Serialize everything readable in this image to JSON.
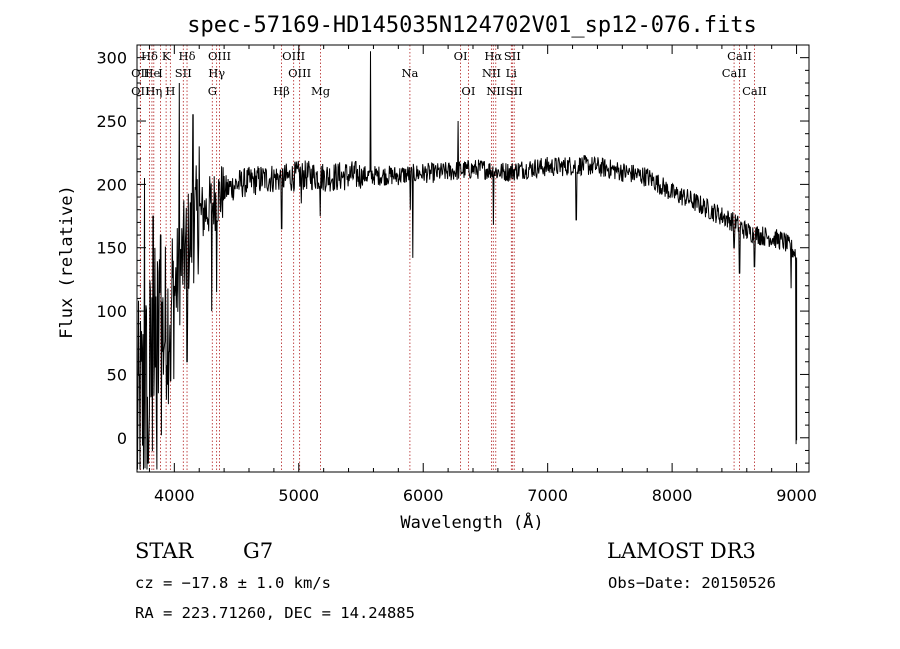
{
  "chart_data": {
    "type": "line",
    "title": "spec-57169-HD145035N124702V01_sp12-076.fits",
    "xlabel": "Wavelength (Å)",
    "ylabel": "Flux (relative)",
    "xlim": [
      3700,
      9100
    ],
    "ylim": [
      -27,
      310
    ],
    "x_ticks": [
      4000,
      5000,
      6000,
      7000,
      8000,
      9000
    ],
    "y_ticks": [
      0,
      50,
      100,
      150,
      200,
      250,
      300
    ],
    "grid": false,
    "series_color": "#000000",
    "line_marker_color": "#b22222",
    "continuum": {
      "x": [
        3700,
        3760,
        3820,
        3880,
        3950,
        4000,
        4050,
        4100,
        4150,
        4200,
        4260,
        4300,
        4350,
        4400,
        4500,
        4600,
        4700,
        4800,
        4900,
        5000,
        5100,
        5200,
        5300,
        5400,
        5500,
        5600,
        5700,
        5800,
        5900,
        6000,
        6100,
        6200,
        6300,
        6400,
        6500,
        6600,
        6700,
        6800,
        6900,
        7000,
        7100,
        7200,
        7300,
        7400,
        7500,
        7600,
        7700,
        7800,
        7900,
        8000,
        8100,
        8200,
        8300,
        8400,
        8500,
        8600,
        8700,
        8800,
        8900,
        8950,
        9000
      ],
      "y": [
        10,
        30,
        50,
        75,
        95,
        115,
        135,
        150,
        165,
        175,
        180,
        185,
        190,
        195,
        200,
        202,
        204,
        205,
        205,
        207,
        207,
        206,
        206,
        207,
        207,
        207,
        207,
        207,
        208,
        209,
        209,
        210,
        211,
        212,
        212,
        210,
        210,
        212,
        213,
        214,
        214,
        215,
        215,
        214,
        212,
        210,
        208,
        206,
        200,
        193,
        190,
        185,
        180,
        175,
        170,
        163,
        160,
        158,
        155,
        150,
        145
      ]
    },
    "features": [
      {
        "x": 3760,
        "y": 205
      },
      {
        "x": 3790,
        "y": -20
      },
      {
        "x": 3830,
        "y": 175
      },
      {
        "x": 3860,
        "y": -25
      },
      {
        "x": 3890,
        "y": 160
      },
      {
        "x": 3935,
        "y": 30
      },
      {
        "x": 3970,
        "y": 45
      },
      {
        "x": 4040,
        "y": 280
      },
      {
        "x": 4102,
        "y": 60
      },
      {
        "x": 4150,
        "y": 255
      },
      {
        "x": 4200,
        "y": 230
      },
      {
        "x": 4300,
        "y": 100
      },
      {
        "x": 4340,
        "y": 115
      },
      {
        "x": 4862,
        "y": 165
      },
      {
        "x": 5020,
        "y": 185
      },
      {
        "x": 5173,
        "y": 175
      },
      {
        "x": 5575,
        "y": 305
      },
      {
        "x": 5895,
        "y": 180
      },
      {
        "x": 5915,
        "y": 142
      },
      {
        "x": 6280,
        "y": 250
      },
      {
        "x": 6563,
        "y": 168
      },
      {
        "x": 7230,
        "y": 172
      },
      {
        "x": 8498,
        "y": 150
      },
      {
        "x": 8542,
        "y": 130
      },
      {
        "x": 8662,
        "y": 135
      },
      {
        "x": 8955,
        "y": 118
      },
      {
        "x": 8995,
        "y": -5
      }
    ],
    "spectral_lines": [
      {
        "label": "Hδ",
        "x": 3800,
        "row": 0
      },
      {
        "label": "K",
        "x": 3934,
        "row": 0
      },
      {
        "label": "Hδ",
        "x": 4102,
        "row": 0
      },
      {
        "label": "OIII",
        "x": 4363,
        "row": 0
      },
      {
        "label": "OIII",
        "x": 4959,
        "row": 0
      },
      {
        "label": "OI",
        "x": 6300,
        "row": 0
      },
      {
        "label": "Hα",
        "x": 6563,
        "row": 0
      },
      {
        "label": "SII",
        "x": 6716,
        "row": 0
      },
      {
        "label": "CaII",
        "x": 8542,
        "row": 0
      },
      {
        "label": "OII",
        "x": 3727,
        "row": 1
      },
      {
        "label": "He",
        "x": 3820,
        "row": 1
      },
      {
        "label": "I",
        "x": 3889,
        "row": 1
      },
      {
        "label": "SII",
        "x": 4072,
        "row": 1
      },
      {
        "label": "Hγ",
        "x": 4340,
        "row": 1
      },
      {
        "label": "OIII",
        "x": 5007,
        "row": 1
      },
      {
        "label": "Na",
        "x": 5893,
        "row": 1
      },
      {
        "label": "NII",
        "x": 6548,
        "row": 1
      },
      {
        "label": "Li",
        "x": 6708,
        "row": 1
      },
      {
        "label": "CaII",
        "x": 8498,
        "row": 1
      },
      {
        "label": "OII",
        "x": 3727,
        "row": 2
      },
      {
        "label": "Hη",
        "x": 3835,
        "row": 2
      },
      {
        "label": "H",
        "x": 3968,
        "row": 2
      },
      {
        "label": "G",
        "x": 4305,
        "row": 2
      },
      {
        "label": "Hβ",
        "x": 4861,
        "row": 2
      },
      {
        "label": "Mg",
        "x": 5175,
        "row": 2
      },
      {
        "label": "OI",
        "x": 6363,
        "row": 2
      },
      {
        "label": "NII",
        "x": 6583,
        "row": 2
      },
      {
        "label": "SII",
        "x": 6731,
        "row": 2
      },
      {
        "label": "CaII",
        "x": 8662,
        "row": 2
      }
    ]
  },
  "info": {
    "class": "STAR",
    "subclass": "G7",
    "survey": "LAMOST DR3",
    "cz": "cz = −17.8 ± 1.0 km/s",
    "obs_date": "Obs−Date: 20150526",
    "coords": "RA = 223.71260, DEC =  14.24885"
  }
}
